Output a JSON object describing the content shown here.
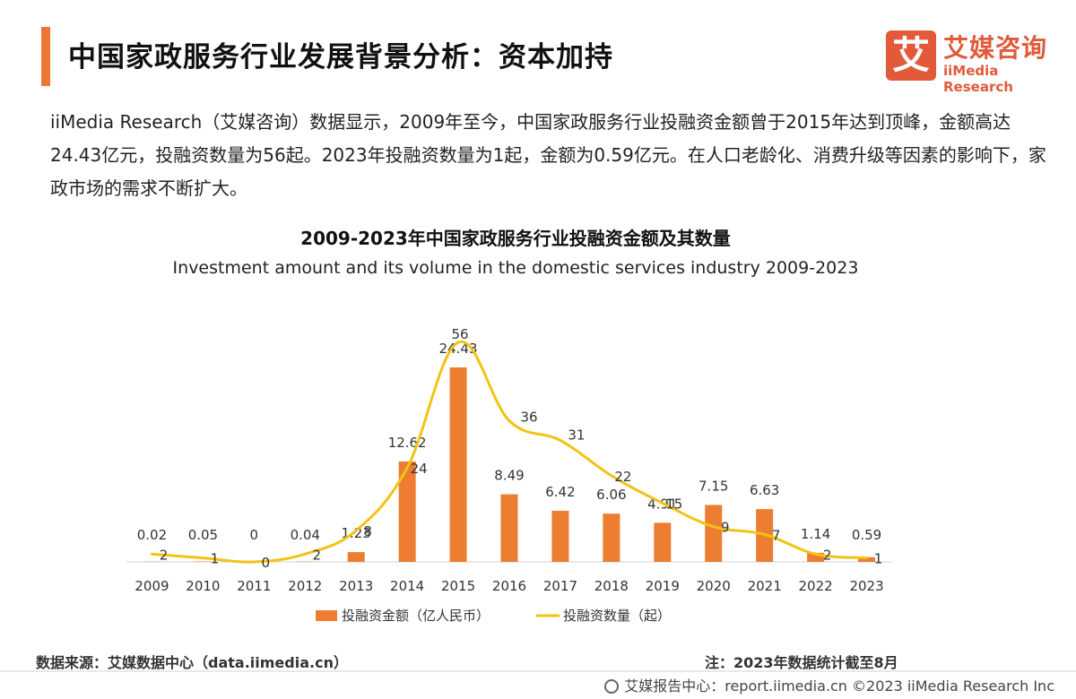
{
  "header": {
    "title": "中国家政服务行业发展背景分析：资本加持",
    "accent_color": "#ee7634"
  },
  "logo": {
    "mark": "艾",
    "name_cn": "艾媒咨询",
    "name_en": "iiMedia Research",
    "color": "#e25a3a"
  },
  "intro": {
    "text": "iiMedia Research（艾媒咨询）数据显示，2009年至今，中国家政服务行业投融资金额曾于2015年达到顶峰，金额高达24.43亿元，投融资数量为56起。2023年投融资数量为1起，金额为0.59亿元。在人口老龄化、消费升级等因素的影响下，家政市场的需求不断扩大。"
  },
  "chart_data": {
    "type": "bar",
    "title": "2009-2023年中国家政服务行业投融资金额及其数量",
    "subtitle": "Investment amount and its volume in the domestic services industry 2009-2023",
    "categories": [
      "2009",
      "2010",
      "2011",
      "2012",
      "2013",
      "2014",
      "2015",
      "2016",
      "2017",
      "2018",
      "2019",
      "2020",
      "2021",
      "2022",
      "2023"
    ],
    "series": [
      {
        "name": "投融资金额（亿人民币）",
        "type": "bar",
        "color": "#ed7d31",
        "values": [
          0.02,
          0.05,
          0,
          0.04,
          1.23,
          12.62,
          24.43,
          8.49,
          6.42,
          6.06,
          4.91,
          7.15,
          6.63,
          1.14,
          0.59
        ],
        "labels": [
          "0.02",
          "0.05",
          "0",
          "0.04",
          "1.23",
          "12.62",
          "24.43",
          "8.49",
          "6.42",
          "6.06",
          "4.91",
          "7.15",
          "6.63",
          "1.14",
          "0.59"
        ]
      },
      {
        "name": "投融资数量（起）",
        "type": "line",
        "color": "#f2c314",
        "values": [
          2,
          1,
          0,
          2,
          8,
          24,
          56,
          36,
          31,
          22,
          15,
          9,
          7,
          2,
          1
        ],
        "labels": [
          "2",
          "1",
          "0",
          "2",
          "8",
          "24",
          "56",
          "36",
          "31",
          "22",
          "15",
          "9",
          "7",
          "2",
          "1"
        ]
      }
    ],
    "legend_position": "bottom",
    "grid": false
  },
  "source": {
    "text": "数据来源：艾媒数据中心（data.iimedia.cn）"
  },
  "note": {
    "text": "注：2023年数据统计截至8月"
  },
  "footer": {
    "text": "艾媒报告中心：report.iimedia.cn   ©2023  iiMedia Research  Inc"
  }
}
